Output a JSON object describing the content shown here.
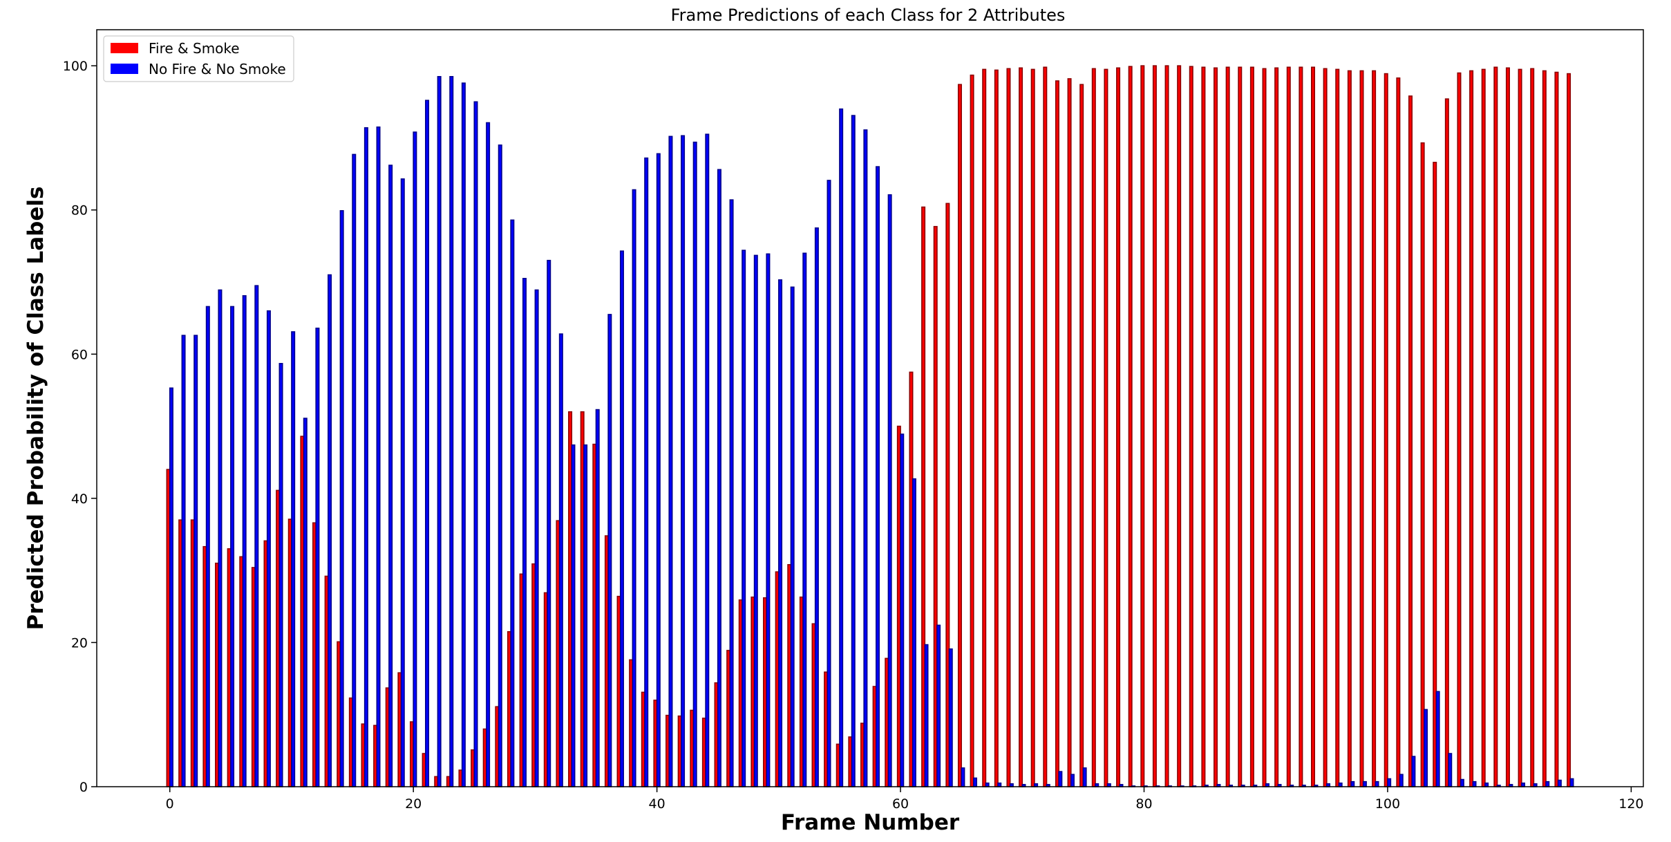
{
  "chart_data": {
    "type": "bar",
    "title": "Frame Predictions of each Class for 2 Attributes",
    "xlabel": "Frame Number",
    "ylabel": "Predicted Probability of Class Labels",
    "xlim": [
      -6,
      121
    ],
    "ylim": [
      0,
      105
    ],
    "xticks": [
      0,
      20,
      40,
      60,
      80,
      100,
      120
    ],
    "yticks": [
      0,
      20,
      40,
      60,
      80,
      100
    ],
    "grid": false,
    "legend_position": "top-left",
    "x": [
      0,
      1,
      2,
      3,
      4,
      5,
      6,
      7,
      8,
      9,
      10,
      11,
      12,
      13,
      14,
      15,
      16,
      17,
      18,
      19,
      20,
      21,
      22,
      23,
      24,
      25,
      26,
      27,
      28,
      29,
      30,
      31,
      32,
      33,
      34,
      35,
      36,
      37,
      38,
      39,
      40,
      41,
      42,
      43,
      44,
      45,
      46,
      47,
      48,
      49,
      50,
      51,
      52,
      53,
      54,
      55,
      56,
      57,
      58,
      59,
      60,
      61,
      62,
      63,
      64,
      65,
      66,
      67,
      68,
      69,
      70,
      71,
      72,
      73,
      74,
      75,
      76,
      77,
      78,
      79,
      80,
      81,
      82,
      83,
      84,
      85,
      86,
      87,
      88,
      89,
      90,
      91,
      92,
      93,
      94,
      95,
      96,
      97,
      98,
      99,
      100,
      101,
      102,
      103,
      104,
      105,
      106,
      107,
      108,
      109,
      110,
      111,
      112,
      113,
      114,
      115
    ],
    "series": [
      {
        "name": "Fire & Smoke",
        "color": "#ff0000",
        "values": [
          44,
          37,
          37,
          33.3,
          31,
          33,
          31.9,
          30.4,
          34.1,
          41.1,
          37.1,
          48.6,
          36.6,
          29.2,
          20.1,
          12.3,
          8.7,
          8.5,
          13.7,
          15.8,
          9,
          4.6,
          1.4,
          1.4,
          2.3,
          5.1,
          8,
          11.1,
          21.5,
          29.5,
          30.9,
          26.9,
          36.9,
          52,
          52,
          47.5,
          34.8,
          26.4,
          17.6,
          13.1,
          12,
          9.9,
          9.8,
          10.6,
          9.5,
          14.4,
          18.9,
          25.9,
          26.3,
          26.2,
          29.8,
          30.8,
          26.3,
          22.6,
          15.9,
          5.9,
          6.9,
          8.8,
          13.9,
          17.8,
          50,
          57.5,
          80.4,
          77.7,
          80.9,
          97.4,
          98.7,
          99.5,
          99.4,
          99.6,
          99.7,
          99.5,
          99.8,
          97.9,
          98.2,
          97.4,
          99.6,
          99.5,
          99.7,
          99.9,
          100,
          100,
          100,
          100,
          99.9,
          99.8,
          99.7,
          99.8,
          99.8,
          99.8,
          99.6,
          99.7,
          99.8,
          99.8,
          99.8,
          99.6,
          99.5,
          99.3,
          99.3,
          99.3,
          98.9,
          98.3,
          95.8,
          89.3,
          86.6,
          95.4,
          99,
          99.3,
          99.5,
          99.8,
          99.7,
          99.5,
          99.6,
          99.3,
          99.1,
          98.9
        ]
      },
      {
        "name": "No Fire & No Smoke",
        "color": "#0000ff",
        "values": [
          55.3,
          62.6,
          62.6,
          66.6,
          68.9,
          66.6,
          68.1,
          69.5,
          66,
          58.7,
          63.1,
          51.1,
          63.6,
          71,
          79.9,
          87.7,
          91.4,
          91.5,
          86.2,
          84.3,
          90.8,
          95.2,
          98.5,
          98.5,
          97.6,
          95,
          92.1,
          89,
          78.6,
          70.5,
          68.9,
          73,
          62.8,
          47.4,
          47.4,
          52.3,
          65.5,
          74.3,
          82.8,
          87.2,
          87.8,
          90.2,
          90.3,
          89.4,
          90.5,
          85.6,
          81.4,
          74.4,
          73.7,
          73.9,
          70.3,
          69.3,
          74,
          77.5,
          84.1,
          94,
          93.1,
          91.1,
          86,
          82.1,
          48.9,
          42.7,
          19.7,
          22.4,
          19.1,
          2.6,
          1.2,
          0.5,
          0.5,
          0.4,
          0.3,
          0.4,
          0.3,
          2.1,
          1.7,
          2.6,
          0.4,
          0.4,
          0.3,
          0.1,
          0.1,
          0.1,
          0.1,
          0.1,
          0.1,
          0.2,
          0.3,
          0.2,
          0.2,
          0.2,
          0.4,
          0.3,
          0.2,
          0.2,
          0.2,
          0.4,
          0.5,
          0.7,
          0.7,
          0.7,
          1.1,
          1.7,
          4.2,
          10.7,
          13.2,
          4.6,
          1,
          0.7,
          0.5,
          0.2,
          0.3,
          0.5,
          0.4,
          0.7,
          0.9,
          1.1
        ]
      }
    ]
  }
}
